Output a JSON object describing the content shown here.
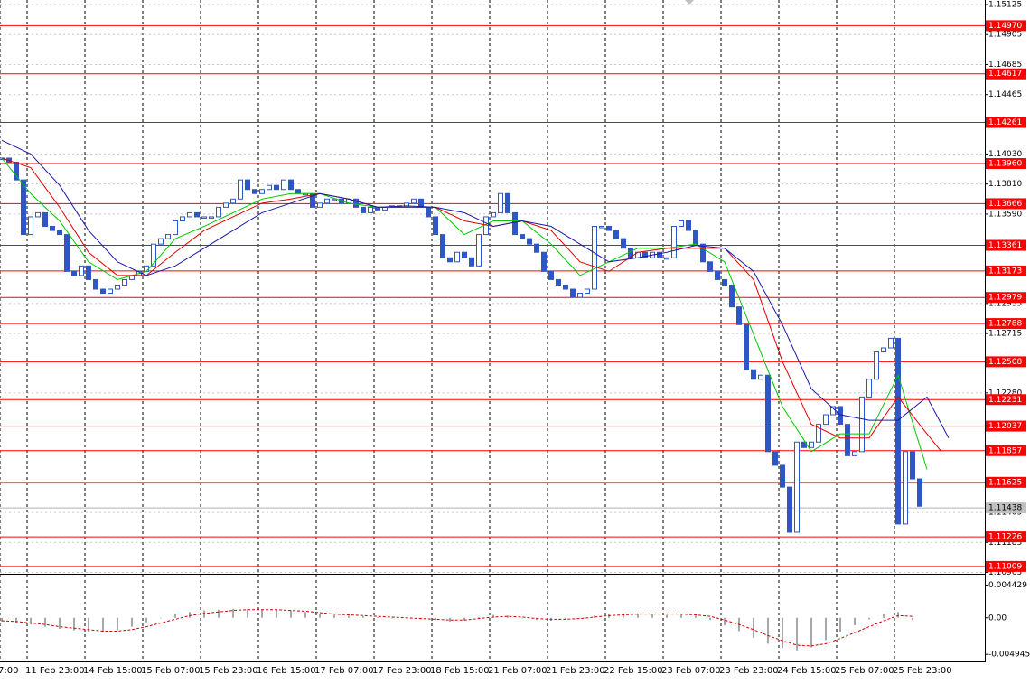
{
  "chart_data": {
    "type": "candlestick",
    "xlim": [
      -0.25,
      136
    ],
    "ylim": [
      1.10962,
      1.15158
    ],
    "candle_color": "#2f56c6",
    "close": [
      1.14,
      1.1397,
      1.1384,
      1.1344,
      1.1357,
      1.136,
      1.135,
      1.1347,
      1.1344,
      1.1317,
      1.1314,
      1.1321,
      1.1311,
      1.1304,
      1.1301,
      1.1304,
      1.1307,
      1.1311,
      1.1314,
      1.1317,
      1.1321,
      1.1337,
      1.1341,
      1.1344,
      1.1354,
      1.1357,
      1.136,
      1.1357,
      1.1357,
      1.1357,
      1.1364,
      1.1367,
      1.137,
      1.1384,
      1.1377,
      1.1374,
      1.1377,
      1.138,
      1.1377,
      1.1384,
      1.1377,
      1.1374,
      1.1374,
      1.1364,
      1.1367,
      1.137,
      1.137,
      1.1367,
      1.137,
      1.1364,
      1.136,
      1.1364,
      1.1362,
      1.1364,
      1.1365,
      1.1364,
      1.1367,
      1.137,
      1.1364,
      1.1357,
      1.1344,
      1.1327,
      1.1324,
      1.1331,
      1.1327,
      1.1321,
      1.1344,
      1.1357,
      1.136,
      1.1374,
      1.136,
      1.1344,
      1.1341,
      1.1337,
      1.1331,
      1.1317,
      1.1311,
      1.1307,
      1.1304,
      1.1298,
      1.1301,
      1.1304,
      1.135,
      1.135,
      1.1347,
      1.1341,
      1.1334,
      1.1327,
      1.1331,
      1.1327,
      1.1331,
      1.1327,
      1.1327,
      1.135,
      1.1354,
      1.1347,
      1.1337,
      1.1324,
      1.1317,
      1.1311,
      1.1307,
      1.1291,
      1.1278,
      1.1245,
      1.1238,
      1.1241,
      1.1185,
      1.1175,
      1.1159,
      1.1126,
      1.1192,
      1.1188,
      1.1192,
      1.1205,
      1.1212,
      1.1218,
      1.1205,
      1.1182,
      1.1185,
      1.1225,
      1.1238,
      1.1258,
      1.1261,
      1.1268,
      1.1132,
      1.1185,
      1.1165,
      1.1145
    ],
    "lines": [
      {
        "color": "#00c800",
        "x": [
          0,
          4,
          8,
          12,
          16,
          20,
          24,
          28,
          32,
          36,
          40,
          44,
          48,
          52,
          56,
          60,
          64,
          68,
          72,
          76,
          80,
          84,
          88,
          92,
          96,
          100,
          104,
          108,
          112,
          116,
          120,
          124,
          128
        ],
        "values": [
          1.14,
          1.1374,
          1.1354,
          1.1324,
          1.1311,
          1.1317,
          1.1341,
          1.135,
          1.136,
          1.137,
          1.1374,
          1.1374,
          1.1367,
          1.1364,
          1.1364,
          1.1364,
          1.1344,
          1.1354,
          1.1354,
          1.1337,
          1.1314,
          1.1324,
          1.1334,
          1.1334,
          1.1337,
          1.1324,
          1.1271,
          1.1218,
          1.1185,
          1.1198,
          1.1198,
          1.1241,
          1.1172
        ]
      },
      {
        "color": "#e00000",
        "x": [
          0,
          4,
          8,
          12,
          16,
          20,
          24,
          28,
          32,
          36,
          40,
          44,
          48,
          52,
          56,
          60,
          64,
          68,
          72,
          76,
          80,
          84,
          88,
          92,
          96,
          100,
          104,
          108,
          112,
          116,
          120,
          124,
          128,
          130
        ],
        "values": [
          1.14,
          1.1393,
          1.1364,
          1.1331,
          1.1314,
          1.1314,
          1.1331,
          1.1347,
          1.1357,
          1.1367,
          1.137,
          1.1374,
          1.137,
          1.1364,
          1.1364,
          1.1364,
          1.1354,
          1.135,
          1.1354,
          1.1347,
          1.1324,
          1.1317,
          1.1331,
          1.1334,
          1.1334,
          1.1334,
          1.1311,
          1.1251,
          1.1205,
          1.1195,
          1.1195,
          1.1225,
          1.1198,
          1.1185
        ]
      },
      {
        "color": "#1a1aa8",
        "x": [
          0,
          4,
          8,
          12,
          16,
          20,
          24,
          28,
          32,
          36,
          40,
          44,
          48,
          52,
          56,
          60,
          64,
          68,
          72,
          76,
          80,
          84,
          88,
          92,
          96,
          100,
          104,
          108,
          112,
          116,
          120,
          124,
          128,
          131
        ],
        "values": [
          1.1413,
          1.1403,
          1.138,
          1.1347,
          1.1324,
          1.1314,
          1.1321,
          1.1334,
          1.1347,
          1.136,
          1.1367,
          1.1374,
          1.137,
          1.1364,
          1.1365,
          1.1364,
          1.136,
          1.135,
          1.1354,
          1.135,
          1.1337,
          1.1324,
          1.1327,
          1.1331,
          1.1336,
          1.1334,
          1.1317,
          1.1278,
          1.1231,
          1.1212,
          1.1208,
          1.1208,
          1.1225,
          1.1195
        ]
      }
    ],
    "level_color": "#ff0000",
    "levels": [
      {
        "value": 1.1497,
        "label": "1.14970"
      },
      1.14617,
      1.14261,
      {
        "value": 1.1396,
        "label": "1.13960"
      },
      1.13666,
      1.13361,
      1.13173,
      1.12979,
      1.12788,
      1.12508,
      1.12231,
      1.12037,
      1.11857,
      1.11625,
      1.11226,
      1.11009
    ],
    "current_price": 1.11438,
    "yticks": [
      1.15125,
      1.14905,
      1.14685,
      1.14465,
      {
        "value": 1.1403,
        "label": "1.14030"
      },
      {
        "value": 1.1381,
        "label": "1.13810"
      },
      {
        "value": 1.1359,
        "label": "1.13590"
      },
      1.12935,
      1.12715,
      {
        "value": 1.1228,
        "label": "1.12280"
      },
      1.11405,
      1.11185,
      1.10965
    ],
    "grid": true,
    "xticks": [
      {
        "value": -0.25,
        "label": "7:00"
      },
      {
        "value": 3.5,
        "label": "11 Feb 23:00"
      },
      {
        "value": 11.5,
        "label": "14 Feb 15:00"
      },
      {
        "value": 19.5,
        "label": "15 Feb 07:00"
      },
      {
        "value": 27.5,
        "label": "15 Feb 23:00"
      },
      {
        "value": 35.5,
        "label": "16 Feb 15:00"
      },
      {
        "value": 43.5,
        "label": "17 Feb 07:00"
      },
      {
        "value": 51.5,
        "label": "17 Feb 23:00"
      },
      {
        "value": 59.5,
        "label": "18 Feb 15:00"
      },
      {
        "value": 67.5,
        "label": "21 Feb 07:00"
      },
      {
        "value": 75.5,
        "label": "21 Feb 23:00"
      },
      {
        "value": 83.5,
        "label": "22 Feb 15:00"
      },
      {
        "value": 91.5,
        "label": "23 Feb 07:00"
      },
      {
        "value": 99.5,
        "label": "23 Feb 23:00"
      },
      {
        "value": 107.5,
        "label": "24 Feb 15:00"
      },
      {
        "value": 115.5,
        "label": "25 Feb 07:00"
      },
      {
        "value": 123.5,
        "label": "25 Feb 23:00"
      }
    ],
    "indicator": {
      "type": "histogram",
      "color": "#a8a8a8",
      "xlim": [
        -0.125,
        68
      ],
      "ylim": [
        -0.0059,
        0.0056
      ],
      "yticks": [
        0.004429,
        {
          "value": 0,
          "label": "0.00"
        },
        -0.004945
      ],
      "values": [
        -0.0005,
        -0.0007,
        -0.0009,
        -0.0012,
        -0.0015,
        -0.0017,
        -0.0019,
        -0.0019,
        -0.0017,
        -0.0012,
        -0.0006,
        0.0,
        0.0005,
        0.0008,
        0.001,
        0.0011,
        0.0012,
        0.0012,
        0.0011,
        0.0011,
        0.001,
        0.0008,
        0.0006,
        0.0004,
        0.0003,
        0.0002,
        0.0001,
        0.0,
        0.0,
        -0.0001,
        -0.0003,
        -0.0005,
        -0.0003,
        0.0001,
        0.0004,
        0.0003,
        0.0,
        -0.0003,
        -0.0004,
        -0.0002,
        0.0,
        0.0003,
        0.0005,
        0.0006,
        0.0006,
        0.0005,
        0.0004,
        0.0005,
        0.0003,
        -0.0003,
        -0.001,
        -0.0018,
        -0.0027,
        -0.0035,
        -0.0041,
        -0.0044,
        -0.004,
        -0.003,
        -0.0019,
        -0.001,
        -0.0002,
        0.0005,
        0.0008,
        -0.0003
      ],
      "signal": {
        "color": "#d00000",
        "values": [
          -0.0004,
          -0.0005,
          -0.0007,
          -0.0009,
          -0.0012,
          -0.0014,
          -0.0016,
          -0.0018,
          -0.0018,
          -0.0016,
          -0.0012,
          -0.0007,
          -0.0002,
          0.0003,
          0.0006,
          0.0008,
          0.001,
          0.0011,
          0.0011,
          0.0011,
          0.001,
          0.0009,
          0.0007,
          0.0005,
          0.0004,
          0.0003,
          0.0002,
          0.0001,
          0.0,
          -0.0001,
          -0.0002,
          -0.0003,
          -0.0003,
          -0.0001,
          0.0001,
          0.0002,
          0.0001,
          -0.0001,
          -0.0002,
          -0.0002,
          -0.0001,
          0.0001,
          0.0003,
          0.0004,
          0.0005,
          0.0005,
          0.0005,
          0.0005,
          0.0004,
          0.0002,
          -0.0003,
          -0.0009,
          -0.0016,
          -0.0024,
          -0.0031,
          -0.0037,
          -0.0038,
          -0.0035,
          -0.0028,
          -0.002,
          -0.0012,
          -0.0004,
          0.0003,
          0.0002
        ]
      }
    }
  }
}
